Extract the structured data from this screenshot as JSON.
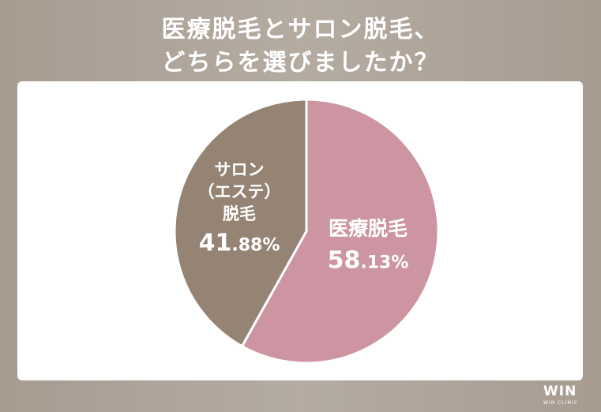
{
  "chart_data": {
    "type": "pie",
    "title": [
      "医療脱毛とサロン脱毛、",
      "どちらを選びましたか？"
    ],
    "categories": [
      "医療脱毛",
      "サロン\n（エステ）\n脱毛"
    ],
    "values": [
      58.13,
      41.88
    ],
    "value_labels": [
      "58.13%",
      "41.88%"
    ],
    "colors": [
      "#cc95a1",
      "#958474"
    ]
  },
  "brand": {
    "logo": "WIN",
    "sub": "WIN CLINIC"
  }
}
